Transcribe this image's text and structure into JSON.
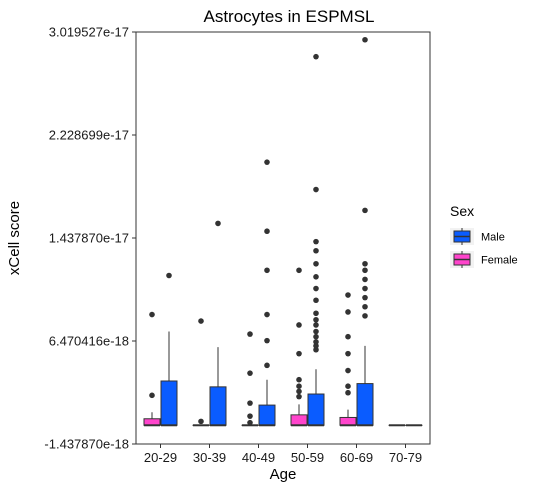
{
  "chart_data": {
    "type": "box",
    "title": "Astrocytes in ESPMSL",
    "xlabel": "Age",
    "ylabel": "xCell score",
    "categories": [
      "20-29",
      "30-39",
      "40-49",
      "50-59",
      "60-69",
      "70-79"
    ],
    "y_tick_labels": [
      "-1.437870e-18",
      "6.470416e-18",
      "1.437870e-17",
      "2.228699e-17",
      "3.019527e-17"
    ],
    "y_tick_values": [
      -1.43787e-18,
      6.470416e-18,
      1.43787e-17,
      2.228699e-17,
      3.019527e-17
    ],
    "ylim": [
      -1.43787e-18,
      3.019527e-17
    ],
    "grid": false,
    "legend": {
      "title": "Sex",
      "position": "right",
      "entries": [
        {
          "name": "Male",
          "color": "#0A5CFF"
        },
        {
          "name": "Female",
          "color": "#FF44CC"
        }
      ]
    },
    "series": [
      {
        "name": "Male",
        "color": "#0A5CFF",
        "boxes": [
          {
            "category": "20-29",
            "q1": 0,
            "median": 0,
            "q3": 3.4e-18,
            "whisker_low": 0,
            "whisker_high": 7.2e-18,
            "outliers": [
              1.15e-17
            ]
          },
          {
            "category": "30-39",
            "q1": 0,
            "median": 0,
            "q3": 2.95e-18,
            "whisker_low": 0,
            "whisker_high": 6e-18,
            "outliers": [
              1.55e-17
            ]
          },
          {
            "category": "40-49",
            "q1": 0,
            "median": 0,
            "q3": 1.55e-18,
            "whisker_low": 0,
            "whisker_high": 3.5e-18,
            "outliers": [
              4.6e-18,
              6.5e-18,
              8.5e-18,
              1.19e-17,
              1.49e-17,
              2.02e-17
            ]
          },
          {
            "category": "50-59",
            "q1": 0,
            "median": 0,
            "q3": 2.4e-18,
            "whisker_low": 0,
            "whisker_high": 4.3e-18,
            "outliers": [
              5.8e-18,
              6.1e-18,
              6.4e-18,
              6.8e-18,
              7.2e-18,
              7.7e-18,
              8.1e-18,
              8.6e-18,
              9.6e-18,
              1.05e-17,
              1.14e-17,
              1.24e-17,
              1.34e-17,
              1.41e-17,
              1.81e-17,
              2.83e-17
            ]
          },
          {
            "category": "60-69",
            "q1": 0,
            "median": 0,
            "q3": 3.2e-18,
            "whisker_low": 0,
            "whisker_high": 6.1e-18,
            "outliers": [
              8.4e-18,
              9.1e-18,
              9.8e-18,
              1.05e-17,
              1.12e-17,
              1.19e-17,
              1.24e-17,
              1.65e-17,
              2.96e-17
            ]
          },
          {
            "category": "70-79",
            "q1": 0,
            "median": 0,
            "q3": 0,
            "whisker_low": 0,
            "whisker_high": 0,
            "outliers": []
          }
        ]
      },
      {
        "name": "Female",
        "color": "#FF44CC",
        "boxes": [
          {
            "category": "20-29",
            "q1": 0,
            "median": 0,
            "q3": 5e-19,
            "whisker_low": 0,
            "whisker_high": 1e-18,
            "outliers": [
              2.3e-18,
              8.5e-18
            ]
          },
          {
            "category": "30-39",
            "q1": 0,
            "median": 0,
            "q3": 0,
            "whisker_low": 0,
            "whisker_high": 0,
            "outliers": [
              3e-19,
              8e-18
            ]
          },
          {
            "category": "40-49",
            "q1": 0,
            "median": 0,
            "q3": 0,
            "whisker_low": 0,
            "whisker_high": 0,
            "outliers": [
              2e-19,
              7e-19,
              1.7e-18,
              4e-18,
              7e-18
            ]
          },
          {
            "category": "50-59",
            "q1": 0,
            "median": 0,
            "q3": 8e-19,
            "whisker_low": 0,
            "whisker_high": 1.6e-18,
            "outliers": [
              2.2e-18,
              2.6e-18,
              3e-18,
              3.5e-18,
              5.5e-18,
              7.7e-18,
              1.19e-17
            ]
          },
          {
            "category": "60-69",
            "q1": 0,
            "median": 0,
            "q3": 6e-19,
            "whisker_low": 0,
            "whisker_high": 1.2e-18,
            "outliers": [
              2.5e-18,
              3e-18,
              4.2e-18,
              5.5e-18,
              6.8e-18,
              8.7e-18,
              1e-17
            ]
          },
          {
            "category": "70-79",
            "q1": 0,
            "median": 0,
            "q3": 0,
            "whisker_low": 0,
            "whisker_high": 0,
            "outliers": []
          }
        ]
      }
    ]
  }
}
